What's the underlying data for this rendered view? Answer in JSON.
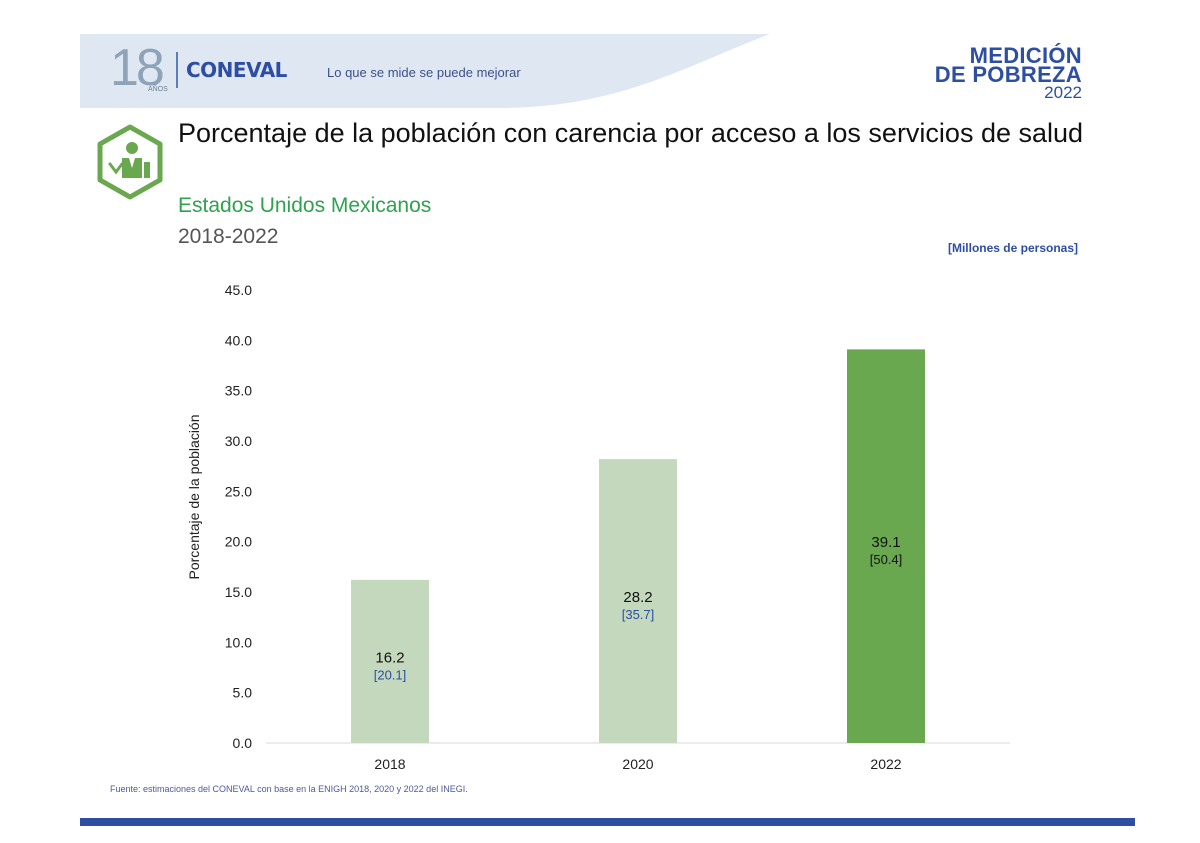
{
  "header": {
    "logo_years": "18",
    "logo_years_sub": "AÑOS",
    "org_name": "CONEVAL",
    "slogan": "Lo que se mide se puede mejorar",
    "medicion_line1": "MEDICIÓN",
    "medicion_line2": "DE POBREZA",
    "medicion_year": "2022"
  },
  "icon": "health-services-hexagon-icon",
  "colors": {
    "banner": "#dfe8f2",
    "bar_light": "#c3d8bd",
    "bar_highlight": "#6aa84f",
    "brand_blue": "#2d4ea2",
    "brand_green": "#6aa84f"
  },
  "title": "Porcentaje de la población con carencia por acceso a los servicios de salud",
  "subtitle": "Estados Unidos Mexicanos",
  "period": "2018-2022",
  "units_note": "[Millones de personas]",
  "source": "Fuente: estimaciones del CONEVAL con base en la ENIGH 2018, 2020 y 2022 del INEGI.",
  "chart_data": {
    "type": "bar",
    "categories": [
      "2018",
      "2020",
      "2022"
    ],
    "values": [
      16.2,
      28.2,
      39.1
    ],
    "value_labels": [
      "16.2",
      "28.2",
      "39.1"
    ],
    "secondary_labels": [
      "[20.1]",
      "[35.7]",
      "[50.4]"
    ],
    "ylabel": "Porcentaje de la población",
    "xlabel": "",
    "ylim": [
      0,
      45
    ],
    "yticks": [
      "0.0",
      "5.0",
      "10.0",
      "15.0",
      "20.0",
      "25.0",
      "30.0",
      "35.0",
      "40.0",
      "45.0"
    ],
    "highlight_index": 2,
    "grid": false
  }
}
